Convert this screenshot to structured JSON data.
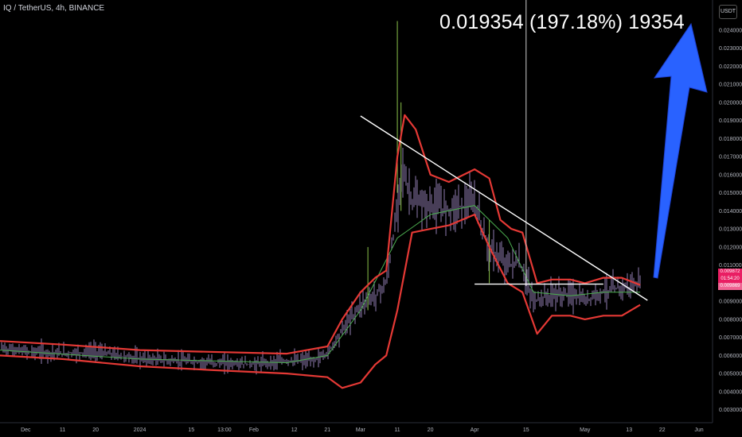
{
  "header": {
    "symbol_line": "IQ / TetherUS, 4h, BINANCE"
  },
  "annotation": {
    "text": "0.019354 (197.18%) 19354"
  },
  "currency_button": "USDT",
  "price_tags": {
    "last": "0.009872",
    "countdown": "01:54:20",
    "other": "0.009869"
  },
  "colors": {
    "background": "#000000",
    "bands": "#e53935",
    "trendline": "#ffffff",
    "arrow": "#2962ff",
    "tag_red": "#e91e63",
    "tag_pink": "#f06292",
    "ma_green": "#4caf50",
    "candles": "#b39ddb"
  },
  "icons": {
    "arrow": "up-arrow-icon"
  },
  "chart_data": {
    "type": "line",
    "title": "IQ / TetherUS, 4h, BINANCE",
    "y_axis_side": "right",
    "ylim": [
      0.0025,
      0.0247
    ],
    "y_ticks": [
      "0.003000",
      "0.004000",
      "0.005000",
      "0.006000",
      "0.007000",
      "0.008000",
      "0.009000",
      "0.010000",
      "0.011000",
      "0.012000",
      "0.013000",
      "0.014000",
      "0.015000",
      "0.016000",
      "0.017000",
      "0.018000",
      "0.019000",
      "0.020000",
      "0.021000",
      "0.022000",
      "0.023000",
      "0.024000"
    ],
    "x_ticks": [
      "Dec",
      "11",
      "20",
      "2024",
      "15",
      "13:00",
      "Feb",
      "12",
      "21",
      "Mar",
      "11",
      "20",
      "Apr",
      "15",
      "May",
      "13",
      "22",
      "Jun"
    ],
    "x_tick_dates": [
      "2023-12-01",
      "2023-12-11",
      "2023-12-20",
      "2024-01-01",
      "2024-01-15",
      "2024-01-24",
      "2024-02-01",
      "2024-02-12",
      "2024-02-21",
      "2024-03-01",
      "2024-03-11",
      "2024-03-20",
      "2024-04-01",
      "2024-04-15",
      "2024-05-01",
      "2024-05-13",
      "2024-05-22",
      "2024-06-01"
    ],
    "price": {
      "dates": [
        "2023-11-24",
        "2023-12-01",
        "2023-12-11",
        "2023-12-20",
        "2024-01-01",
        "2024-01-10",
        "2024-01-20",
        "2024-02-01",
        "2024-02-10",
        "2024-02-17",
        "2024-02-21",
        "2024-02-25",
        "2024-03-01",
        "2024-03-05",
        "2024-03-08",
        "2024-03-11",
        "2024-03-12",
        "2024-03-15",
        "2024-03-20",
        "2024-03-25",
        "2024-04-01",
        "2024-04-05",
        "2024-04-10",
        "2024-04-13",
        "2024-04-17",
        "2024-04-22",
        "2024-04-27",
        "2024-05-01",
        "2024-05-05",
        "2024-05-10",
        "2024-05-16"
      ],
      "values": [
        0.0064,
        0.0062,
        0.0061,
        0.0062,
        0.0058,
        0.0057,
        0.0056,
        0.0055,
        0.0057,
        0.0057,
        0.0061,
        0.0074,
        0.0088,
        0.0093,
        0.01,
        0.014,
        0.0165,
        0.0145,
        0.0142,
        0.0141,
        0.0144,
        0.0118,
        0.011,
        0.0112,
        0.009,
        0.0093,
        0.0094,
        0.009,
        0.0095,
        0.0097,
        0.00987
      ]
    },
    "upper_band": {
      "dates": [
        "2023-11-24",
        "2023-12-11",
        "2024-01-01",
        "2024-01-20",
        "2024-02-10",
        "2024-02-21",
        "2024-02-25",
        "2024-03-01",
        "2024-03-05",
        "2024-03-08",
        "2024-03-11",
        "2024-03-13",
        "2024-03-16",
        "2024-03-20",
        "2024-03-25",
        "2024-04-01",
        "2024-04-05",
        "2024-04-08",
        "2024-04-11",
        "2024-04-14",
        "2024-04-18",
        "2024-04-22",
        "2024-04-27",
        "2024-05-01",
        "2024-05-06",
        "2024-05-11",
        "2024-05-16"
      ],
      "values": [
        0.0068,
        0.0066,
        0.0063,
        0.0062,
        0.0061,
        0.0065,
        0.008,
        0.0095,
        0.0103,
        0.0107,
        0.017,
        0.0193,
        0.0185,
        0.016,
        0.0156,
        0.0163,
        0.0158,
        0.0135,
        0.013,
        0.0128,
        0.01,
        0.0102,
        0.0102,
        0.01,
        0.0103,
        0.0103,
        0.0099
      ]
    },
    "lower_band": {
      "dates": [
        "2023-11-24",
        "2023-12-11",
        "2024-01-01",
        "2024-01-20",
        "2024-02-10",
        "2024-02-21",
        "2024-02-25",
        "2024-03-01",
        "2024-03-05",
        "2024-03-08",
        "2024-03-11",
        "2024-03-15",
        "2024-03-20",
        "2024-03-25",
        "2024-04-01",
        "2024-04-05",
        "2024-04-10",
        "2024-04-14",
        "2024-04-18",
        "2024-04-22",
        "2024-04-27",
        "2024-05-01",
        "2024-05-06",
        "2024-05-11",
        "2024-05-16"
      ],
      "values": [
        0.006,
        0.0058,
        0.0054,
        0.0052,
        0.005,
        0.0048,
        0.0042,
        0.0045,
        0.0055,
        0.006,
        0.0085,
        0.0128,
        0.013,
        0.0132,
        0.0138,
        0.012,
        0.01,
        0.0095,
        0.0072,
        0.0082,
        0.0082,
        0.008,
        0.0082,
        0.0082,
        0.0088
      ]
    },
    "middle_line": {
      "dates": [
        "2023-11-24",
        "2024-01-01",
        "2024-02-10",
        "2024-02-21",
        "2024-03-01",
        "2024-03-11",
        "2024-03-20",
        "2024-04-01",
        "2024-04-10",
        "2024-04-17",
        "2024-04-27",
        "2024-05-06",
        "2024-05-16"
      ],
      "values": [
        0.0063,
        0.0058,
        0.0056,
        0.006,
        0.0085,
        0.0125,
        0.0138,
        0.0143,
        0.0125,
        0.0095,
        0.0093,
        0.0095,
        0.0095
      ]
    },
    "trendline": {
      "dates": [
        "2024-03-01",
        "2024-05-18"
      ],
      "values": [
        0.01925,
        0.00905
      ]
    },
    "horizontal_line": {
      "dates": [
        "2024-04-01",
        "2024-05-06"
      ],
      "values": [
        0.00995,
        0.00995
      ]
    },
    "vertical_marker_date": "2024-04-15",
    "grid": false,
    "legend": "none"
  }
}
